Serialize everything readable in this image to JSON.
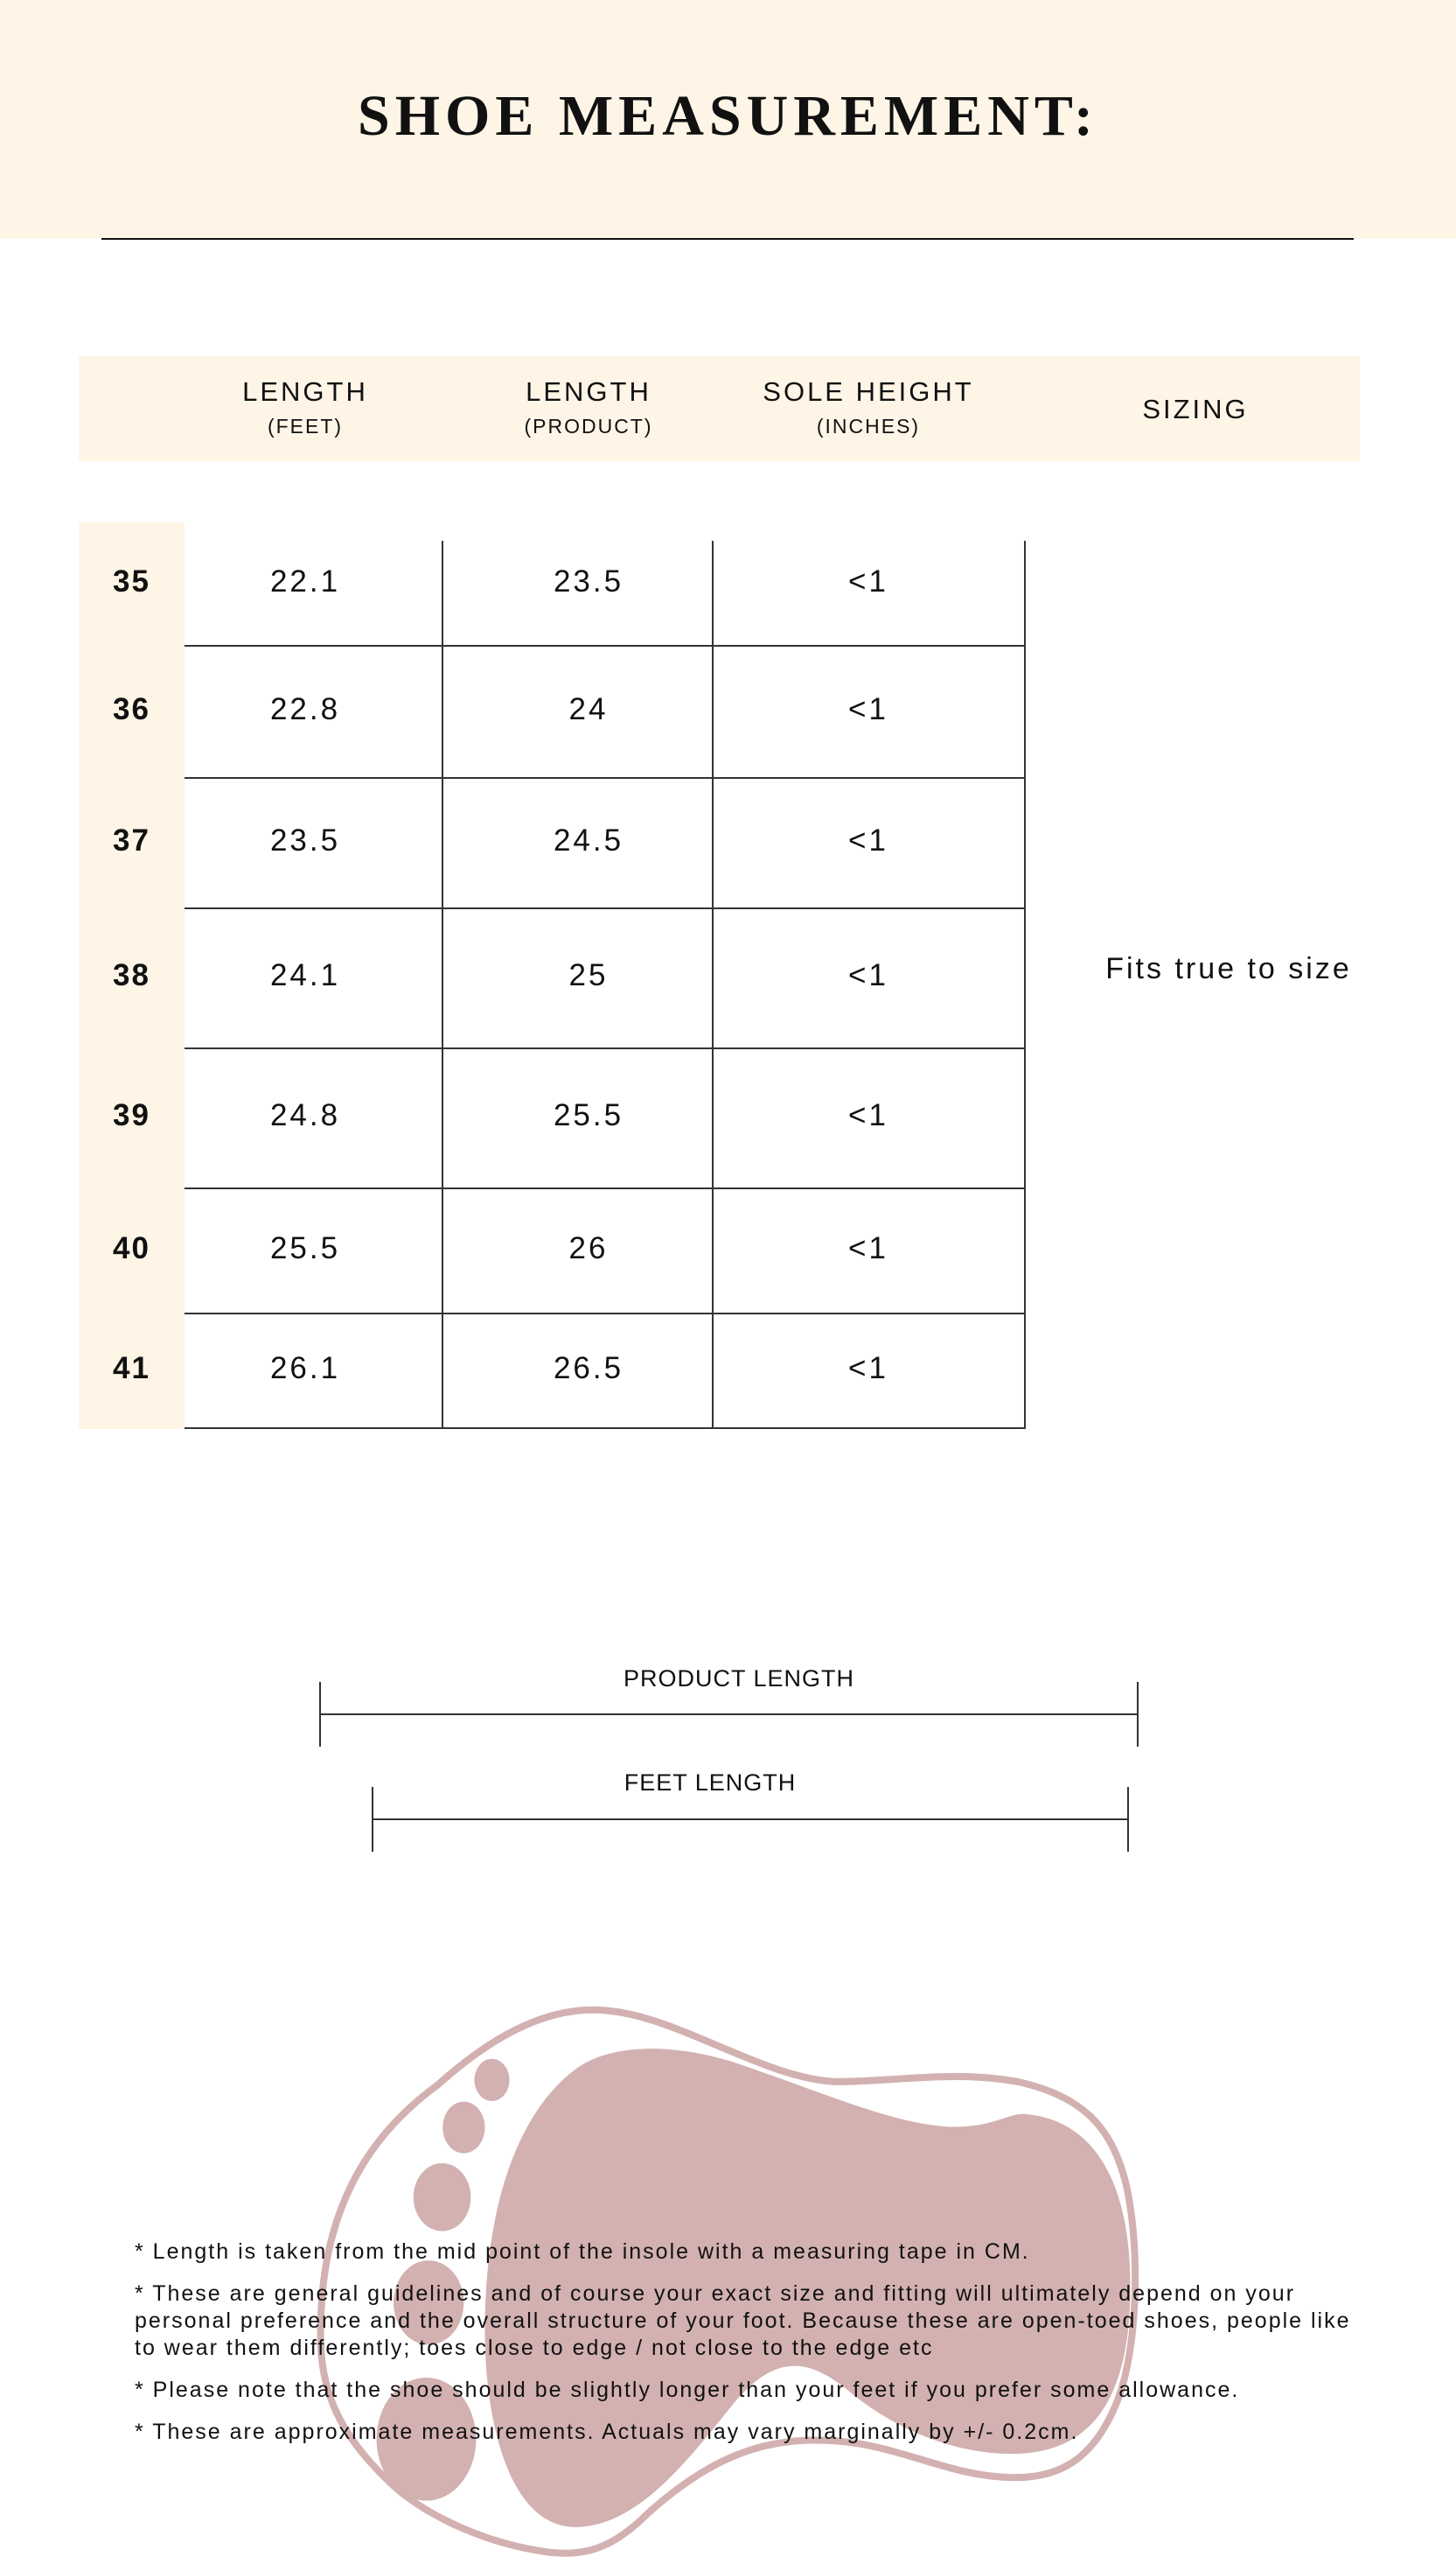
{
  "title": "SHOE MEASUREMENT:",
  "colors": {
    "band": "#fef5e7",
    "foot": "#d3b1b1",
    "line": "#333333"
  },
  "table": {
    "headers": [
      {
        "label": "LENGTH",
        "sub": "(FEET)"
      },
      {
        "label": "LENGTH",
        "sub": "(PRODUCT)"
      },
      {
        "label": "SOLE HEIGHT",
        "sub": "(INCHES)"
      },
      {
        "label": "SIZING",
        "sub": ""
      }
    ],
    "rows": [
      {
        "size": "35",
        "feet": "22.1",
        "product": "23.5",
        "sole": "<1"
      },
      {
        "size": "36",
        "feet": "22.8",
        "product": "24",
        "sole": "<1"
      },
      {
        "size": "37",
        "feet": "23.5",
        "product": "24.5",
        "sole": "<1"
      },
      {
        "size": "38",
        "feet": "24.1",
        "product": "25",
        "sole": "<1"
      },
      {
        "size": "39",
        "feet": "24.8",
        "product": "25.5",
        "sole": "<1"
      },
      {
        "size": "40",
        "feet": "25.5",
        "product": "26",
        "sole": "<1"
      },
      {
        "size": "41",
        "feet": "26.1",
        "product": "26.5",
        "sole": "<1"
      }
    ],
    "sizing": "Fits true to size"
  },
  "diagram": {
    "product_length": "PRODUCT LENGTH",
    "feet_length": "FEET LENGTH"
  },
  "notes": [
    "* Length is taken from the mid point of the insole with a measuring tape in CM.",
    "* These are general guidelines and of course your exact size and fitting will ultimately depend on your personal preference and the overall structure of your foot. Because these are open-toed shoes, people like to wear them differently; toes close to edge / not close to the edge etc",
    "* Please note that the shoe should be slightly longer than your feet if you prefer some allowance.",
    "* These are approximate measurements. Actuals may vary marginally by +/- 0.2cm."
  ]
}
